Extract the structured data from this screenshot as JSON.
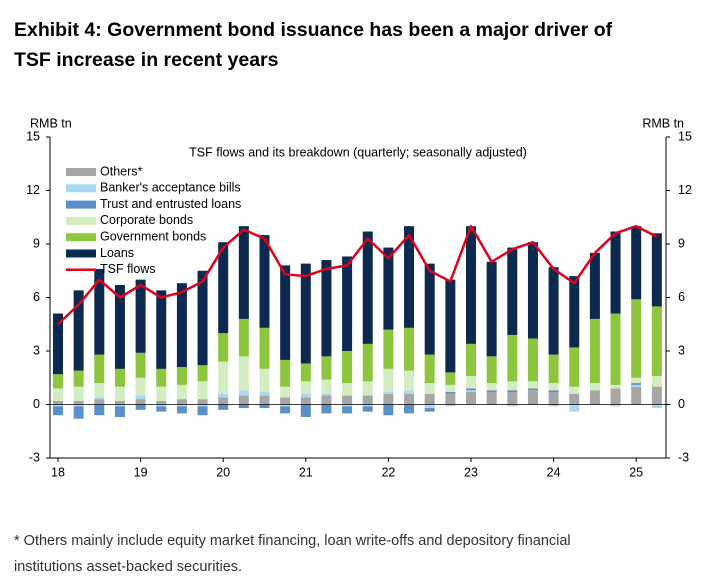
{
  "chart_data": {
    "type": "bar",
    "title": "Exhibit 4: Government bond issuance has been a major driver of TSF increase in recent years",
    "subtitle": "TSF flows and its breakdown (quarterly; seasonally adjusted)",
    "y_label": "RMB tn",
    "y2_label": "RMB tn",
    "footnote": "* Others mainly include equity market financing, loan write-offs and depository financial institutions asset-backed securities.",
    "stacked": true,
    "categories": [
      "18",
      null,
      null,
      null,
      "19",
      null,
      null,
      null,
      "20",
      null,
      null,
      null,
      "21",
      null,
      null,
      null,
      "22",
      null,
      null,
      null,
      "23",
      null,
      null,
      null,
      "24",
      null,
      null,
      null,
      "25",
      null
    ],
    "series": [
      {
        "name": "Others*",
        "color": "#a6a6a6",
        "values": [
          0.2,
          0.2,
          0.3,
          0.2,
          0.3,
          0.2,
          0.3,
          0.3,
          0.4,
          0.5,
          0.5,
          0.4,
          0.4,
          0.5,
          0.5,
          0.5,
          0.6,
          0.6,
          0.6,
          0.6,
          0.7,
          0.7,
          0.7,
          0.8,
          0.7,
          0.6,
          0.8,
          0.9,
          1.0,
          1.0
        ]
      },
      {
        "name": "Banker's acceptance bills",
        "color": "#a9d8f0",
        "values": [
          -0.1,
          -0.1,
          0.1,
          -0.1,
          0.2,
          -0.1,
          -0.1,
          -0.1,
          0.2,
          0.3,
          0.2,
          -0.1,
          0.2,
          0.1,
          -0.1,
          -0.1,
          0.1,
          0.2,
          -0.2,
          -0.1,
          0.1,
          0,
          -0.1,
          0,
          -0.1,
          -0.4,
          0,
          -0.1,
          0.1,
          -0.2
        ]
      },
      {
        "name": "Trust and entrusted loans",
        "color": "#5b8fc9",
        "values": [
          -0.5,
          -0.7,
          -0.6,
          -0.6,
          -0.3,
          -0.3,
          -0.4,
          -0.5,
          -0.3,
          -0.2,
          -0.2,
          -0.4,
          -0.7,
          -0.5,
          -0.4,
          -0.3,
          -0.6,
          -0.5,
          -0.2,
          0.1,
          0.1,
          0.1,
          0.1,
          0.1,
          0.1,
          0,
          0,
          0,
          0.1,
          0
        ]
      },
      {
        "name": "Corporate bonds",
        "color": "#d3ecc0",
        "values": [
          0.7,
          0.8,
          0.8,
          0.8,
          1.0,
          0.8,
          0.8,
          1.0,
          1.8,
          1.9,
          1.3,
          0.6,
          0.7,
          0.8,
          0.7,
          0.8,
          1.3,
          1.1,
          0.6,
          0.4,
          0.7,
          0.4,
          0.5,
          0.4,
          0.4,
          0.4,
          0.4,
          0.2,
          0.3,
          0.6
        ]
      },
      {
        "name": "Government bonds",
        "color": "#8cc63f",
        "values": [
          0.8,
          0.9,
          1.6,
          1.0,
          1.4,
          1.0,
          1.0,
          0.9,
          1.6,
          2.1,
          2.3,
          1.5,
          1.0,
          1.3,
          1.8,
          2.1,
          2.2,
          2.4,
          1.6,
          0.7,
          1.8,
          1.5,
          2.6,
          2.4,
          1.6,
          2.2,
          3.6,
          4.0,
          4.4,
          3.9
        ]
      },
      {
        "name": "Loans",
        "color": "#0c2a4f",
        "values": [
          3.4,
          4.5,
          4.8,
          4.7,
          4.1,
          4.4,
          4.7,
          5.3,
          5.1,
          5.2,
          5.2,
          5.3,
          5.6,
          5.4,
          5.3,
          6.3,
          4.6,
          5.7,
          5.1,
          5.2,
          6.6,
          5.3,
          4.9,
          5.4,
          4.9,
          4.0,
          3.7,
          4.6,
          4.1,
          4.1
        ]
      }
    ],
    "line": {
      "name": "TSF flows",
      "color": "#e3001b",
      "values": [
        4.5,
        5.6,
        7.0,
        6.0,
        6.7,
        6.0,
        6.3,
        6.9,
        8.8,
        9.8,
        9.3,
        7.3,
        7.2,
        7.6,
        7.8,
        9.3,
        8.2,
        9.5,
        7.5,
        6.9,
        10.0,
        8.0,
        8.7,
        9.1,
        7.6,
        6.8,
        8.5,
        9.6,
        10.0,
        9.4
      ]
    },
    "ylim": [
      -3,
      15
    ],
    "yticks": [
      -3,
      0,
      3,
      6,
      9,
      12,
      15
    ],
    "y2lim": [
      -3,
      15
    ],
    "y2ticks": [
      -3,
      0,
      3,
      6,
      9,
      12,
      15
    ],
    "grid": false,
    "legend": "top-left"
  }
}
